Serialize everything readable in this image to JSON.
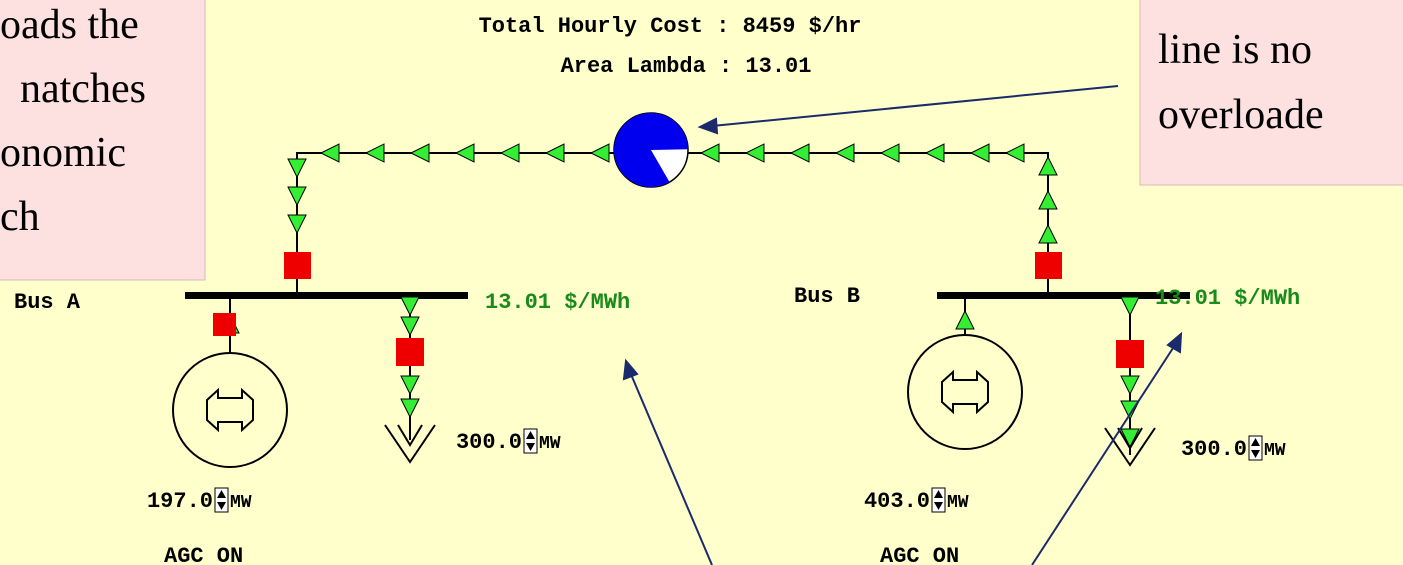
{
  "callout_left": {
    "lines": [
      "oads the",
      "natches",
      "onomic",
      "ch"
    ]
  },
  "callout_right": {
    "lines": [
      "line is no",
      "overloade"
    ]
  },
  "header": {
    "total_cost": "Total Hourly Cost : 8459 $/hr",
    "area_lambda": "Area Lambda : 13.01"
  },
  "line": {
    "loading_percent": 83
  },
  "buses": [
    {
      "label": "Bus A",
      "price": "13.01 $/MWh",
      "generator": {
        "output": "197.0",
        "unit": "MW",
        "agc": "AGC ON"
      },
      "load": {
        "value": "300.0",
        "unit": "MW"
      }
    },
    {
      "label": "Bus B",
      "price": "13.01 $/MWh",
      "generator": {
        "output": "403.0",
        "unit": "MW",
        "agc": "AGC ON"
      },
      "load": {
        "value": "300.0",
        "unit": "MW"
      }
    }
  ]
}
